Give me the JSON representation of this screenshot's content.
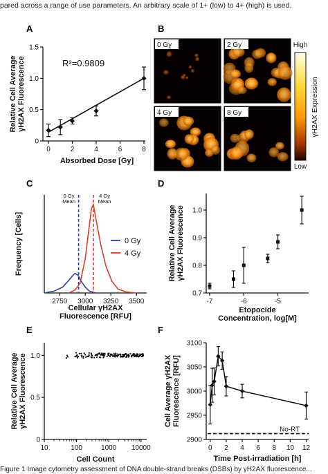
{
  "captions": {
    "top": "pared across a range of use parameters. An arbitrary scale of 1+ (low) to 4+ (high) is used.",
    "bottom": "Figure 1  Image cytometry assessment of DNA double-strand breaks (DSBs) by γH2AX fluorescence..."
  },
  "colors": {
    "blue": "#2c3ea8",
    "red": "#e23b23",
    "ink": "#111111"
  },
  "chart_data": [
    {
      "panel": "A",
      "type": "scatter",
      "xlabel": "Absorbed Dose [Gy]",
      "ylabel": "Relative Cell Average\nγH2AX Fluorescence",
      "xlim": [
        0,
        8
      ],
      "ylim": [
        0,
        1.5
      ],
      "xticks": [
        "0",
        "2",
        "4",
        "6",
        "8"
      ],
      "yticks": [
        "0",
        "0.5",
        "1.0",
        "1.5"
      ],
      "annotation": "R²=0.9809",
      "x": [
        0,
        1,
        2,
        4,
        8
      ],
      "y": [
        0.17,
        0.22,
        0.32,
        0.48,
        1.0
      ],
      "err": [
        0.1,
        0.12,
        0.05,
        0.08,
        0.18
      ],
      "fit": [
        [
          0,
          0.14
        ],
        [
          8,
          1.0
        ]
      ]
    },
    {
      "panel": "B",
      "type": "heatmap",
      "images": [
        "0 Gy",
        "2 Gy",
        "4 Gy",
        "8 Gy"
      ],
      "colorbar_label": "γH2AX Expression",
      "colorbar_high": "High",
      "colorbar_low": "Low"
    },
    {
      "panel": "C",
      "type": "line",
      "xlabel": "Cellular γH2AX\nFluorescence [RFU]",
      "ylabel": "Frequency [Cells]",
      "xlim": [
        2600,
        3600
      ],
      "xticks": [
        "2750",
        "3000",
        "3250",
        "3500"
      ],
      "xtick_values": [
        2750,
        3000,
        3250,
        3500
      ],
      "ylim": [
        0,
        1
      ],
      "annotations": [
        "0 Gy\nMean",
        "4 Gy\nMean"
      ],
      "means": [
        2935,
        3080
      ],
      "series": [
        {
          "name": "0 Gy",
          "color": "blue",
          "points": [
            [
              2600,
              0.0
            ],
            [
              2700,
              0.02
            ],
            [
              2780,
              0.06
            ],
            [
              2840,
              0.13
            ],
            [
              2880,
              0.18
            ],
            [
              2900,
              0.2
            ],
            [
              2930,
              0.18
            ],
            [
              2960,
              0.12
            ],
            [
              3000,
              0.06
            ],
            [
              3040,
              0.02
            ],
            [
              3100,
              0.0
            ]
          ]
        },
        {
          "name": "4 Gy",
          "color": "red",
          "points": [
            [
              2840,
              0.0
            ],
            [
              2900,
              0.03
            ],
            [
              2950,
              0.1
            ],
            [
              3000,
              0.35
            ],
            [
              3030,
              0.6
            ],
            [
              3060,
              0.86
            ],
            [
              3080,
              0.9
            ],
            [
              3100,
              0.78
            ],
            [
              3150,
              0.5
            ],
            [
              3200,
              0.28
            ],
            [
              3260,
              0.12
            ],
            [
              3320,
              0.04
            ],
            [
              3400,
              0.01
            ],
            [
              3500,
              0.0
            ]
          ]
        }
      ]
    },
    {
      "panel": "D",
      "type": "scatter",
      "xlabel": "Etopocide\nConcentration, log[M]",
      "ylabel": "Relative Cell Average\nγH2AX Fluorescence",
      "xlim": [
        -7.1,
        -4.1
      ],
      "ylim": [
        0.7,
        1.06
      ],
      "xticks": [
        "-7",
        "-6",
        "-5"
      ],
      "xtick_values": [
        -7,
        -6,
        -5
      ],
      "yticks": [
        "0.7",
        "0.8",
        "0.9",
        "1.0"
      ],
      "ytick_values": [
        0.7,
        0.8,
        0.9,
        1.0
      ],
      "x": [
        -7.0,
        -6.3,
        -6.0,
        -5.3,
        -5.0,
        -4.3
      ],
      "y": [
        0.725,
        0.75,
        0.8,
        0.825,
        0.885,
        1.0
      ],
      "err": [
        0.01,
        0.03,
        0.065,
        0.015,
        0.025,
        0.05
      ]
    },
    {
      "panel": "E",
      "type": "scatter",
      "xlabel": "Cell Count",
      "ylabel": "Relative Cell Average\nγH2AX Fluorescence",
      "xscale": "log",
      "xlim": [
        10,
        15000
      ],
      "ylim": [
        0,
        1.15
      ],
      "xticks": [
        "10",
        "100",
        "1000",
        "10000"
      ],
      "xtick_values": [
        10,
        100,
        1000,
        10000
      ],
      "yticks": [
        "0",
        "0.5",
        "1.0"
      ],
      "ytick_values": [
        0,
        0.5,
        1.0
      ],
      "cloud": {
        "count": 170,
        "xmin": 25,
        "xmax": 12000,
        "ymean": 1.0,
        "yspread": 0.03
      }
    },
    {
      "panel": "F",
      "type": "line",
      "xlabel": "Time Post-irradiation [h]",
      "ylabel": "Cell Average γH2AX\nFluorescence [RFU]",
      "xlim": [
        -0.5,
        12.3
      ],
      "ylim": [
        2900,
        3100
      ],
      "xticks": [
        "0",
        "2",
        "4",
        "6",
        "8",
        "10",
        "12"
      ],
      "xtick_values": [
        0,
        2,
        4,
        6,
        8,
        10,
        12
      ],
      "yticks": [
        "2900",
        "2950",
        "3000",
        "3050",
        "3100"
      ],
      "ytick_values": [
        2900,
        2950,
        3000,
        3050,
        3100
      ],
      "baseline_label": "No-RT",
      "baseline": 2912,
      "x": [
        0,
        0.25,
        0.5,
        1,
        1.5,
        2,
        4,
        12
      ],
      "y": [
        2972,
        3012,
        3020,
        3072,
        3063,
        3010,
        3000,
        2970
      ],
      "err": [
        40,
        35,
        28,
        20,
        18,
        20,
        14,
        28
      ]
    }
  ]
}
